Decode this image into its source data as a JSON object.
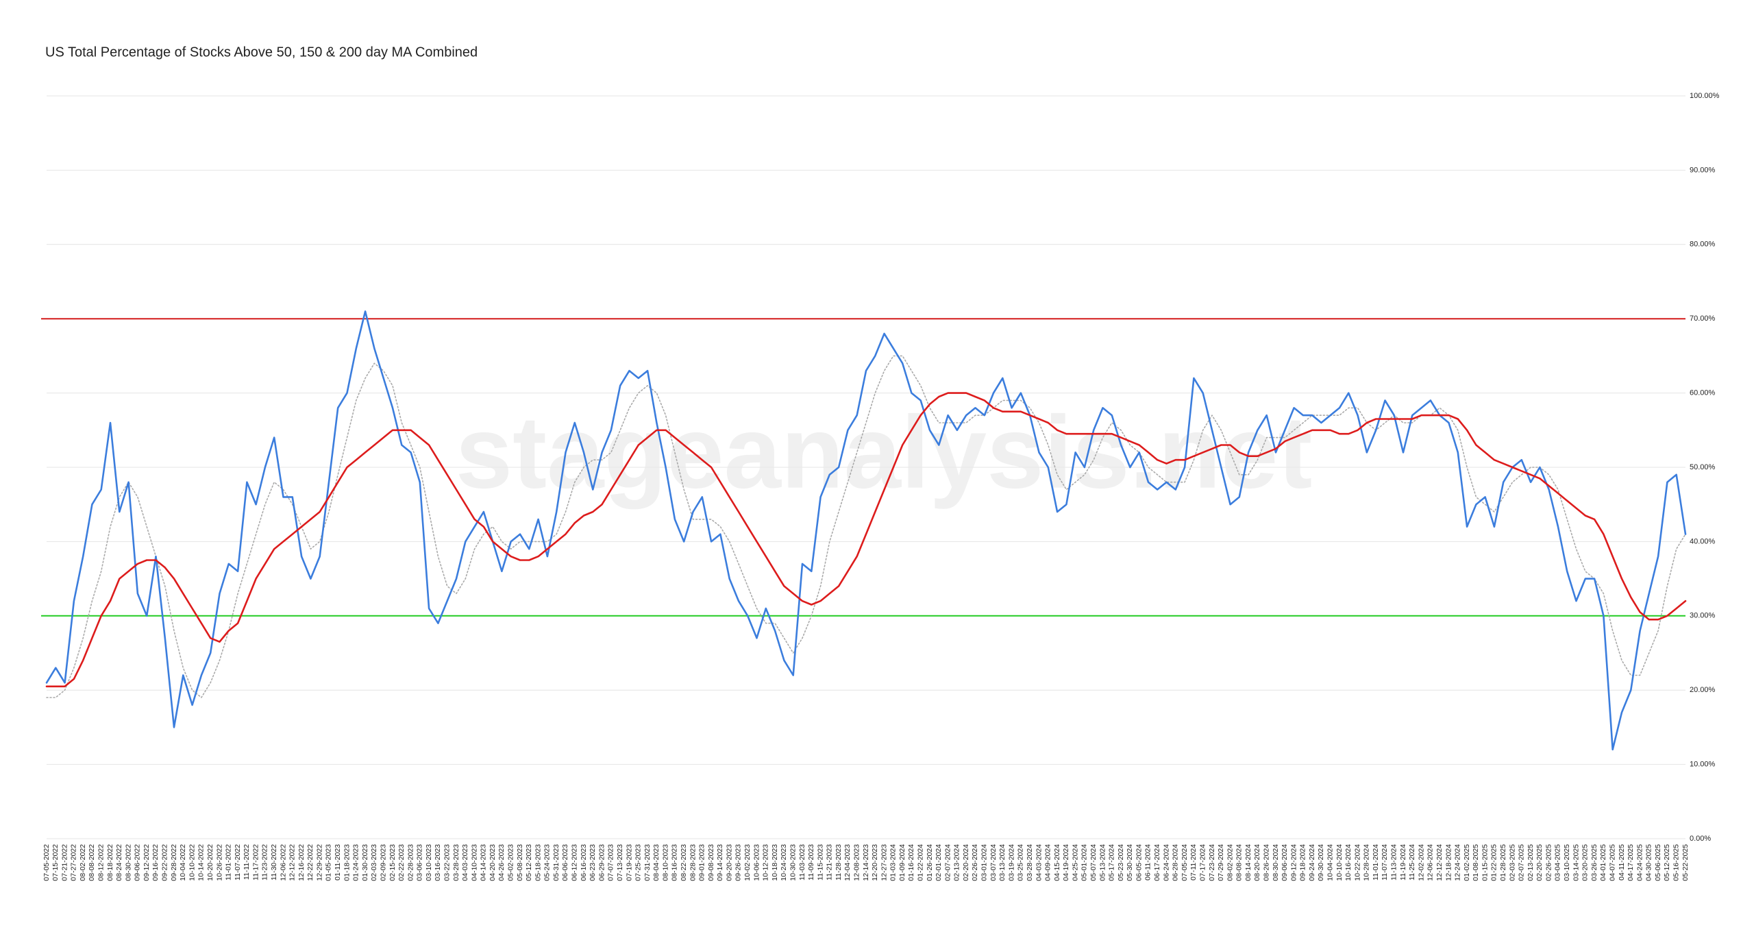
{
  "chart_data": {
    "type": "line",
    "title": "US Total Percentage of Stocks Above 50, 150 & 200 day MA Combined",
    "watermark": "stageanalysis.net",
    "categories": [
      "07-05-2022",
      "07-15-2022",
      "07-21-2022",
      "07-27-2022",
      "08-02-2022",
      "08-08-2022",
      "08-12-2022",
      "08-18-2022",
      "08-24-2022",
      "08-30-2022",
      "09-06-2022",
      "09-12-2022",
      "09-16-2022",
      "09-22-2022",
      "09-28-2022",
      "10-04-2022",
      "10-10-2022",
      "10-14-2022",
      "10-20-2022",
      "10-26-2022",
      "11-01-2022",
      "11-07-2022",
      "11-11-2022",
      "11-17-2022",
      "11-23-2022",
      "11-30-2022",
      "12-06-2022",
      "12-12-2022",
      "12-16-2022",
      "12-22-2022",
      "12-29-2022",
      "01-05-2023",
      "01-11-2023",
      "01-18-2023",
      "01-24-2023",
      "01-30-2023",
      "02-03-2023",
      "02-09-2023",
      "02-15-2023",
      "02-22-2023",
      "02-28-2023",
      "03-06-2023",
      "03-10-2023",
      "03-16-2023",
      "03-22-2023",
      "03-28-2023",
      "04-03-2023",
      "04-10-2023",
      "04-14-2023",
      "04-20-2023",
      "04-26-2023",
      "05-02-2023",
      "05-08-2023",
      "05-12-2023",
      "05-18-2023",
      "05-24-2023",
      "05-31-2023",
      "06-06-2023",
      "06-12-2023",
      "06-16-2023",
      "06-23-2023",
      "06-29-2023",
      "07-07-2023",
      "07-13-2023",
      "07-19-2023",
      "07-25-2023",
      "07-31-2023",
      "08-04-2023",
      "08-10-2023",
      "08-16-2023",
      "08-22-2023",
      "08-28-2023",
      "09-01-2023",
      "09-08-2023",
      "09-14-2023",
      "09-20-2023",
      "09-26-2023",
      "10-02-2023",
      "10-06-2023",
      "10-12-2023",
      "10-18-2023",
      "10-24-2023",
      "10-30-2023",
      "11-03-2023",
      "11-09-2023",
      "11-15-2023",
      "11-21-2023",
      "11-28-2023",
      "12-04-2023",
      "12-08-2023",
      "12-14-2023",
      "12-20-2023",
      "12-27-2023",
      "01-03-2024",
      "01-09-2024",
      "01-16-2024",
      "01-22-2024",
      "01-26-2024",
      "02-01-2024",
      "02-07-2024",
      "02-13-2024",
      "02-20-2024",
      "02-26-2024",
      "03-01-2024",
      "03-07-2024",
      "03-13-2024",
      "03-19-2024",
      "03-25-2024",
      "03-28-2024",
      "04-03-2024",
      "04-09-2024",
      "04-15-2024",
      "04-19-2024",
      "04-25-2024",
      "05-01-2024",
      "05-07-2024",
      "05-13-2024",
      "05-17-2024",
      "05-23-2024",
      "05-30-2024",
      "06-05-2024",
      "06-11-2024",
      "06-17-2024",
      "06-24-2024",
      "06-28-2024",
      "07-05-2024",
      "07-11-2024",
      "07-17-2024",
      "07-23-2024",
      "07-29-2024",
      "08-02-2024",
      "08-08-2024",
      "08-14-2024",
      "08-20-2024",
      "08-26-2024",
      "08-30-2024",
      "09-06-2024",
      "09-12-2024",
      "09-18-2024",
      "09-24-2024",
      "09-30-2024",
      "10-04-2024",
      "10-10-2024",
      "10-16-2024",
      "10-22-2024",
      "10-28-2024",
      "11-01-2024",
      "11-07-2024",
      "11-13-2024",
      "11-19-2024",
      "11-25-2024",
      "12-02-2024",
      "12-06-2024",
      "12-12-2024",
      "12-18-2024",
      "12-24-2024",
      "01-02-2025",
      "01-08-2025",
      "01-15-2025",
      "01-22-2025",
      "01-28-2025",
      "02-03-2025",
      "02-07-2025",
      "02-13-2025",
      "02-20-2025",
      "02-26-2025",
      "03-04-2025",
      "03-10-2025",
      "03-14-2025",
      "03-20-2025",
      "03-26-2025",
      "04-01-2025",
      "04-07-2025",
      "04-11-2025",
      "04-17-2025",
      "04-24-2025",
      "04-30-2025",
      "05-06-2025",
      "05-12-2025",
      "05-16-2025",
      "05-22-2025"
    ],
    "series": [
      {
        "color": "#3b7ddd",
        "style": "solid",
        "values": [
          21,
          23,
          21,
          32,
          38,
          45,
          47,
          56,
          44,
          48,
          33,
          30,
          38,
          27,
          15,
          22,
          18,
          22,
          25,
          33,
          37,
          36,
          48,
          45,
          50,
          54,
          46,
          46,
          38,
          35,
          38,
          48,
          58,
          60,
          66,
          71,
          66,
          62,
          58,
          53,
          52,
          48,
          31,
          29,
          32,
          35,
          40,
          42,
          44,
          40,
          36,
          40,
          41,
          39,
          43,
          38,
          44,
          52,
          56,
          52,
          47,
          52,
          55,
          61,
          63,
          62,
          63,
          56,
          50,
          43,
          40,
          44,
          46,
          40,
          41,
          35,
          32,
          30,
          27,
          31,
          28,
          24,
          22,
          37,
          36,
          46,
          49,
          50,
          55,
          57,
          63,
          65,
          68,
          66,
          64,
          60,
          59,
          55,
          53,
          57,
          55,
          57,
          58,
          57,
          60,
          62,
          58,
          60,
          57,
          52,
          50,
          44,
          45,
          52,
          50,
          55,
          58,
          57,
          53,
          50,
          52,
          48,
          47,
          48,
          47,
          50,
          62,
          60,
          55,
          50,
          45,
          46,
          52,
          55,
          57,
          52,
          55,
          58,
          57,
          57,
          56,
          57,
          58,
          60,
          57,
          52,
          55,
          59,
          57,
          52,
          57,
          58,
          59,
          57,
          56,
          52,
          42,
          45,
          46,
          42,
          48,
          50,
          51,
          48,
          50,
          47,
          42,
          36,
          32,
          35,
          35,
          30,
          12,
          17,
          20,
          28,
          33,
          38,
          48,
          49,
          41
        ]
      },
      {
        "color": "#aaaaaa",
        "style": "dotted",
        "values": [
          19,
          19,
          20,
          23,
          27,
          32,
          36,
          42,
          46,
          48,
          46,
          42,
          38,
          34,
          28,
          23,
          20,
          19,
          21,
          24,
          28,
          33,
          37,
          41,
          45,
          48,
          47,
          45,
          42,
          39,
          40,
          44,
          49,
          54,
          59,
          62,
          64,
          63,
          61,
          56,
          53,
          50,
          44,
          38,
          34,
          33,
          35,
          39,
          41,
          42,
          40,
          39,
          40,
          40,
          40,
          40,
          41,
          44,
          48,
          50,
          51,
          51,
          52,
          55,
          58,
          60,
          61,
          60,
          57,
          52,
          47,
          43,
          43,
          43,
          42,
          40,
          37,
          34,
          31,
          29,
          29,
          27,
          25,
          27,
          30,
          34,
          40,
          44,
          48,
          52,
          56,
          60,
          63,
          65,
          65,
          63,
          61,
          58,
          56,
          56,
          56,
          56,
          57,
          57,
          58,
          59,
          59,
          59,
          58,
          56,
          53,
          49,
          47,
          48,
          49,
          51,
          54,
          56,
          55,
          53,
          52,
          50,
          49,
          48,
          48,
          48,
          51,
          55,
          57,
          55,
          52,
          49,
          49,
          51,
          54,
          54,
          54,
          55,
          56,
          57,
          57,
          57,
          57,
          58,
          58,
          56,
          55,
          56,
          57,
          56,
          56,
          57,
          57,
          58,
          57,
          55,
          50,
          46,
          45,
          44,
          46,
          48,
          49,
          50,
          50,
          49,
          47,
          43,
          39,
          36,
          35,
          33,
          28,
          24,
          22,
          22,
          25,
          28,
          34,
          39,
          41
        ]
      },
      {
        "color": "#dd1c1c",
        "style": "solid",
        "values": [
          20.5,
          20.5,
          20.5,
          21.5,
          24,
          27,
          30,
          32,
          35,
          36,
          37,
          37.5,
          37.5,
          36.5,
          35,
          33,
          31,
          29,
          27,
          26.5,
          28,
          29,
          32,
          35,
          37,
          39,
          40,
          41,
          42,
          43,
          44,
          46,
          48,
          50,
          51,
          52,
          53,
          54,
          55,
          55,
          55,
          54,
          53,
          51,
          49,
          47,
          45,
          43,
          42,
          40,
          39,
          38,
          37.5,
          37.5,
          38,
          39,
          40,
          41,
          42.5,
          43.5,
          44,
          45,
          47,
          49,
          51,
          53,
          54,
          55,
          55,
          54,
          53,
          52,
          51,
          50,
          48,
          46,
          44,
          42,
          40,
          38,
          36,
          34,
          33,
          32,
          31.5,
          32,
          33,
          34,
          36,
          38,
          41,
          44,
          47,
          50,
          53,
          55,
          57,
          58.5,
          59.5,
          60,
          60,
          60,
          59.5,
          59,
          58,
          57.5,
          57.5,
          57.5,
          57,
          56.5,
          56,
          55,
          54.5,
          54.5,
          54.5,
          54.5,
          54.5,
          54.5,
          54,
          53.5,
          53,
          52,
          51,
          50.5,
          51,
          51,
          51.5,
          52,
          52.5,
          53,
          53,
          52,
          51.5,
          51.5,
          52,
          52.5,
          53.5,
          54,
          54.5,
          55,
          55,
          55,
          54.5,
          54.5,
          55,
          56,
          56.5,
          56.5,
          56.5,
          56.5,
          56.5,
          57,
          57,
          57,
          57,
          56.5,
          55,
          53,
          52,
          51,
          50.5,
          50,
          49.5,
          49,
          48.5,
          47.5,
          46.5,
          45.5,
          44.5,
          43.5,
          43,
          41,
          38,
          35,
          32.5,
          30.5,
          29.5,
          29.5,
          30,
          31,
          32
        ]
      }
    ],
    "reference_lines": [
      {
        "value": 70,
        "color": "#d41c1c"
      },
      {
        "value": 30,
        "color": "#22cc22"
      }
    ],
    "ylim": [
      0,
      100
    ],
    "yticks": [
      {
        "value": 0,
        "label": "0.00%"
      },
      {
        "value": 10,
        "label": "10.00%"
      },
      {
        "value": 20,
        "label": "20.00%"
      },
      {
        "value": 30,
        "label": "30.00%"
      },
      {
        "value": 40,
        "label": "40.00%"
      },
      {
        "value": 50,
        "label": "50.00%"
      },
      {
        "value": 60,
        "label": "60.00%"
      },
      {
        "value": 70,
        "label": "70.00%"
      },
      {
        "value": 80,
        "label": "80.00%"
      },
      {
        "value": 90,
        "label": "90.00%"
      },
      {
        "value": 100,
        "label": "100.00%"
      }
    ],
    "grid": true
  }
}
